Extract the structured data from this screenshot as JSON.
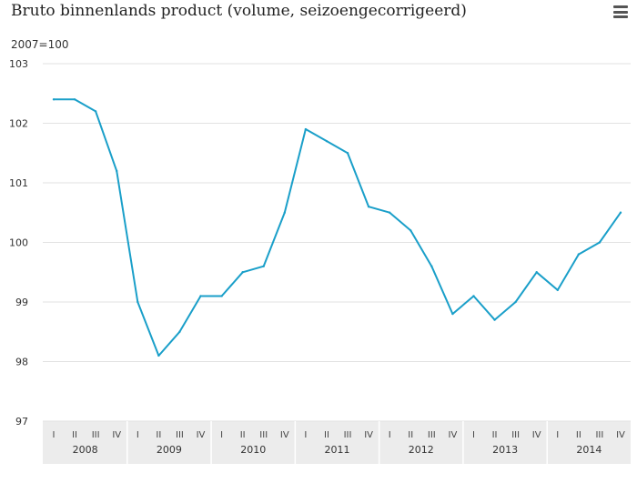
{
  "header": {
    "title": "Bruto binnenlands product (volume, seizoengecorrigeerd)",
    "menu_icon": "hamburger-menu-icon"
  },
  "chart_data": {
    "type": "line",
    "title": "Bruto binnenlands product (volume, seizoengecorrigeerd)",
    "ylabel": "2007=100",
    "xlabel": "",
    "ylim": [
      97,
      103
    ],
    "yticks": [
      97,
      98,
      99,
      100,
      101,
      102,
      103
    ],
    "grid": true,
    "legend": "none",
    "color": "#1a9fc9",
    "years": [
      "2008",
      "2009",
      "2010",
      "2011",
      "2012",
      "2013",
      "2014"
    ],
    "quarters": [
      "I",
      "II",
      "III",
      "IV"
    ],
    "series": [
      {
        "values": [
          102.4,
          102.4,
          102.2,
          101.2,
          99.0,
          98.1,
          98.5,
          99.1,
          99.1,
          99.5,
          99.6,
          100.5,
          101.9,
          101.7,
          101.5,
          100.6,
          100.5,
          100.2,
          99.6,
          98.8,
          99.1,
          98.7,
          99.0,
          99.5,
          99.2,
          99.8,
          100.0,
          100.5
        ]
      }
    ]
  }
}
